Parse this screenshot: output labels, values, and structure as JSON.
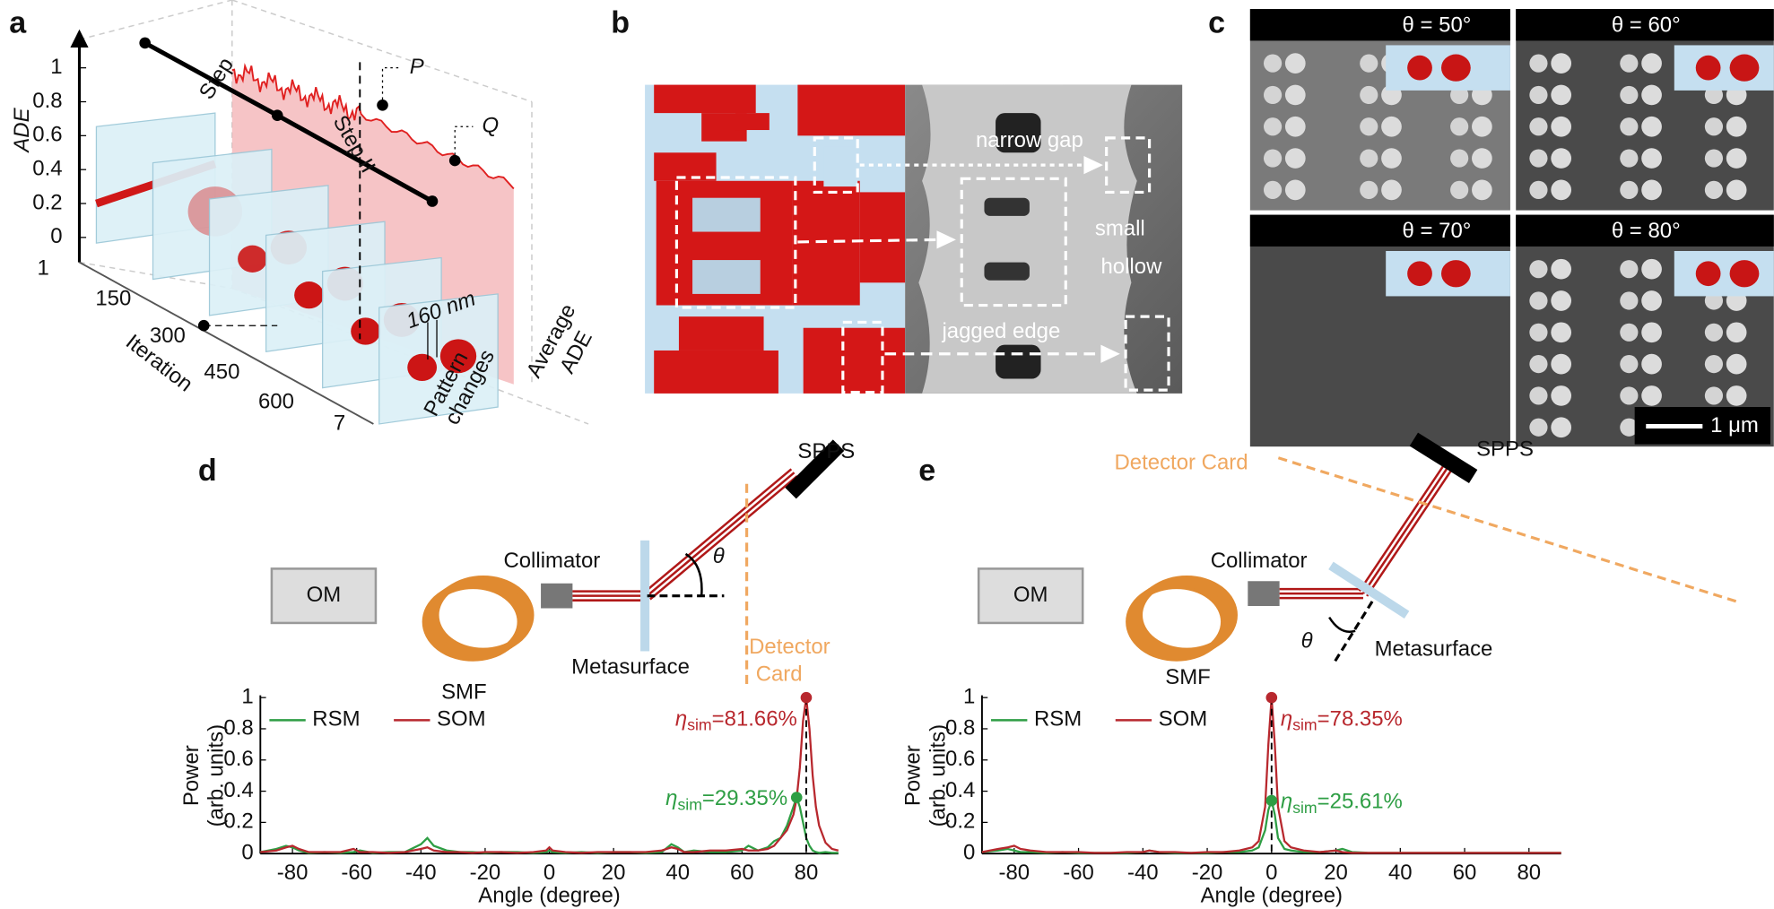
{
  "figure": {
    "a": {
      "label": "a",
      "yaxis": "ADE",
      "yticks": [
        "1",
        "0.8",
        "0.6",
        "0.4",
        "0.2",
        "0"
      ],
      "xticks": [
        "1",
        "150",
        "300",
        "450",
        "600",
        "7"
      ],
      "xaxis": "Iteration",
      "step1": "Step",
      "step2": "Step II",
      "p": "P",
      "q": "Q",
      "scale": "160 nm",
      "pattern": [
        "Pattern",
        "changes"
      ],
      "average": [
        "Average",
        "ADE"
      ]
    },
    "b": {
      "label": "b",
      "narrow": "narrow gap",
      "small": "small",
      "hollow": "hollow",
      "jagged": "jagged edge"
    },
    "c": {
      "label": "c",
      "angles": [
        "θ = 50°",
        "θ = 60°",
        "θ = 70°",
        "θ = 80°"
      ],
      "scale": "1 μm"
    },
    "d": {
      "label": "d",
      "spps": "SPPS",
      "theta": "θ",
      "collimator": "Collimator",
      "om": "OM",
      "smf": "SMF",
      "metasurface": "Metasurface",
      "detector": [
        "Detector",
        "Card"
      ]
    },
    "e": {
      "label": "e",
      "detector": "Detector Card",
      "spps": "SPPS",
      "collimator": "Collimator",
      "om": "OM",
      "smf": "SMF",
      "theta": "θ",
      "metasurface": "Metasurface"
    }
  },
  "chart_data": [
    {
      "type": "line",
      "xlabel": "Angle (degree)",
      "ylabel": [
        "Power",
        "(arb. units)"
      ],
      "xlim": [
        -90,
        90
      ],
      "xticks": [
        -80,
        -60,
        -40,
        -20,
        0,
        20,
        40,
        60,
        80
      ],
      "ylim": [
        0,
        1
      ],
      "yticks": [
        0,
        0.2,
        0.4,
        0.6,
        0.8,
        1
      ],
      "legend": "upper left",
      "x": [
        -90,
        -85,
        -82,
        -80,
        -78,
        -75,
        -70,
        -65,
        -61,
        -59,
        -55,
        -50,
        -45,
        -40,
        -38,
        -36,
        -32,
        -28,
        -24,
        -20,
        -15,
        -10,
        -5,
        -1,
        0,
        1,
        5,
        10,
        15,
        20,
        25,
        30,
        35,
        38,
        40,
        42,
        45,
        50,
        55,
        60,
        62,
        65,
        68,
        70,
        72,
        74,
        76,
        77,
        78,
        79,
        80,
        81,
        82,
        83,
        84,
        86,
        88,
        90
      ],
      "series": [
        {
          "name": "RSM",
          "color": "#2e9e44",
          "annotation": {
            "symbol": "η",
            "subscript": "sim",
            "text": "=29.35%"
          },
          "values": [
            0.01,
            0.03,
            0.05,
            0.04,
            0.02,
            0.005,
            0.01,
            0.005,
            0.01,
            0.02,
            0.005,
            0.01,
            0.01,
            0.06,
            0.1,
            0.05,
            0.02,
            0.01,
            0.01,
            0.005,
            0.01,
            0.01,
            0.005,
            0.01,
            0.02,
            0.01,
            0.005,
            0.01,
            0.005,
            0.01,
            0.01,
            0.005,
            0.01,
            0.06,
            0.04,
            0.01,
            0.02,
            0.01,
            0.01,
            0.02,
            0.05,
            0.02,
            0.04,
            0.08,
            0.1,
            0.18,
            0.3,
            0.36,
            0.3,
            0.2,
            0.1,
            0.05,
            0.02,
            0.01,
            0.005,
            0.01,
            0.005,
            0.005
          ]
        },
        {
          "name": "SOM",
          "color": "#b8282e",
          "annotation": {
            "symbol": "η",
            "subscript": "sim",
            "text": "=81.66%"
          },
          "values": [
            0.01,
            0.02,
            0.04,
            0.05,
            0.03,
            0.01,
            0.01,
            0.01,
            0.03,
            0.01,
            0.01,
            0.005,
            0.01,
            0.03,
            0.04,
            0.02,
            0.01,
            0.01,
            0.005,
            0.01,
            0.01,
            0.005,
            0.01,
            0.02,
            0.04,
            0.02,
            0.01,
            0.005,
            0.01,
            0.01,
            0.01,
            0.01,
            0.02,
            0.04,
            0.03,
            0.01,
            0.01,
            0.02,
            0.02,
            0.03,
            0.02,
            0.02,
            0.03,
            0.05,
            0.1,
            0.15,
            0.25,
            0.35,
            0.55,
            0.85,
            1,
            0.8,
            0.5,
            0.3,
            0.18,
            0.07,
            0.03,
            0.02
          ]
        }
      ]
    },
    {
      "type": "line",
      "xlabel": "Angle (degree)",
      "ylabel": [
        "Power",
        "(arb. units)"
      ],
      "xlim": [
        -90,
        90
      ],
      "xticks": [
        -80,
        -60,
        -40,
        -20,
        0,
        20,
        40,
        60,
        80
      ],
      "ylim": [
        0,
        1
      ],
      "yticks": [
        0,
        0.2,
        0.4,
        0.6,
        0.8,
        1
      ],
      "legend": "upper left",
      "x": [
        -90,
        -85,
        -82,
        -80,
        -78,
        -75,
        -70,
        -65,
        -60,
        -55,
        -50,
        -45,
        -40,
        -38,
        -35,
        -30,
        -25,
        -20,
        -15,
        -10,
        -6,
        -4,
        -2,
        -1,
        0,
        1,
        2,
        4,
        6,
        10,
        15,
        20,
        22,
        25,
        30,
        40,
        50,
        60,
        70,
        80,
        90
      ],
      "series": [
        {
          "name": "RSM",
          "color": "#2e9e44",
          "annotation": {
            "symbol": "η",
            "subscript": "sim",
            "text": "=25.61%"
          },
          "values": [
            0.01,
            0.02,
            0.03,
            0.02,
            0.01,
            0.01,
            0.005,
            0.01,
            0.005,
            0.005,
            0.005,
            0.005,
            0.01,
            0.02,
            0.01,
            0.005,
            0.005,
            0.005,
            0.01,
            0.01,
            0.02,
            0.04,
            0.15,
            0.28,
            0.34,
            0.25,
            0.1,
            0.03,
            0.02,
            0.01,
            0.01,
            0.02,
            0.03,
            0.01,
            0.005,
            0.005,
            0.005,
            0.005,
            0.005,
            0.005,
            0.005
          ]
        },
        {
          "name": "SOM",
          "color": "#b8282e",
          "annotation": {
            "symbol": "η",
            "subscript": "sim",
            "text": "=78.35%"
          },
          "values": [
            0.01,
            0.03,
            0.04,
            0.05,
            0.03,
            0.02,
            0.01,
            0.01,
            0.01,
            0.005,
            0.005,
            0.01,
            0.01,
            0.02,
            0.01,
            0.01,
            0.005,
            0.01,
            0.01,
            0.02,
            0.04,
            0.08,
            0.3,
            0.7,
            1,
            0.7,
            0.3,
            0.08,
            0.04,
            0.02,
            0.01,
            0.02,
            0.01,
            0.005,
            0.005,
            0.005,
            0.005,
            0.005,
            0.005,
            0.005,
            0.005
          ]
        }
      ]
    }
  ]
}
